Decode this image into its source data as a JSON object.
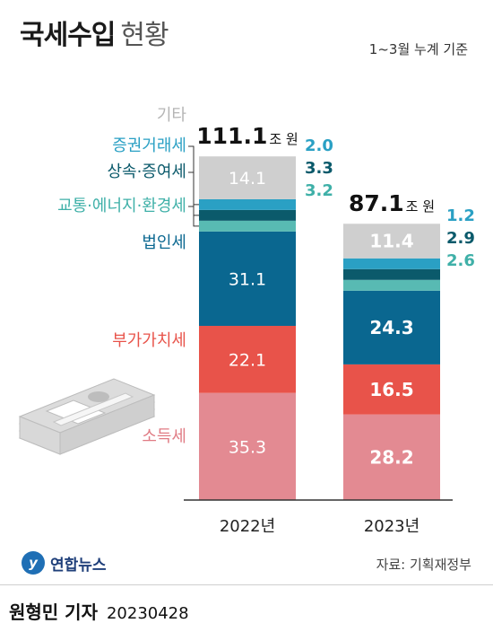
{
  "header": {
    "title": "국세수입",
    "subtitle": "현황",
    "note": "1~3월 누계 기준"
  },
  "chart_data": {
    "type": "bar",
    "stacked": true,
    "unit": "조 원",
    "categories": [
      "2022년",
      "2023년"
    ],
    "totals": [
      {
        "value": "111.1",
        "unit": "조 원"
      },
      {
        "value": "87.1",
        "unit": "조 원"
      }
    ],
    "series": [
      {
        "name": "소득세",
        "values": [
          35.3,
          28.2
        ],
        "color": "#e38a92",
        "labelColor": "#e07b84"
      },
      {
        "name": "부가가치세",
        "values": [
          22.1,
          16.5
        ],
        "color": "#e8534a",
        "labelColor": "#e8534a"
      },
      {
        "name": "법인세",
        "values": [
          31.1,
          24.3
        ],
        "color": "#0a6790",
        "labelColor": "#0a6790"
      },
      {
        "name": "교통·에너지·환경세",
        "values": [
          3.2,
          2.6
        ],
        "color": "#58bab3",
        "labelColor": "#3fb0a8"
      },
      {
        "name": "상속·증여세",
        "values": [
          3.3,
          2.9
        ],
        "color": "#0b5a6b",
        "labelColor": "#0b5a6b"
      },
      {
        "name": "증권거래세",
        "values": [
          2.0,
          1.2
        ],
        "color": "#2aa0c4",
        "labelColor": "#2aa0c4"
      },
      {
        "name": "기타",
        "values": [
          14.1,
          11.4
        ],
        "color": "#cfcfcf",
        "labelColor": "#b5b5b5"
      }
    ]
  },
  "footer": {
    "logo": "연합뉴스",
    "source": "자료: 기획재정부"
  },
  "byline": {
    "reporter": "원형민 기자",
    "date": "20230428"
  },
  "icons": {
    "money": "banknote-stack-icon"
  }
}
